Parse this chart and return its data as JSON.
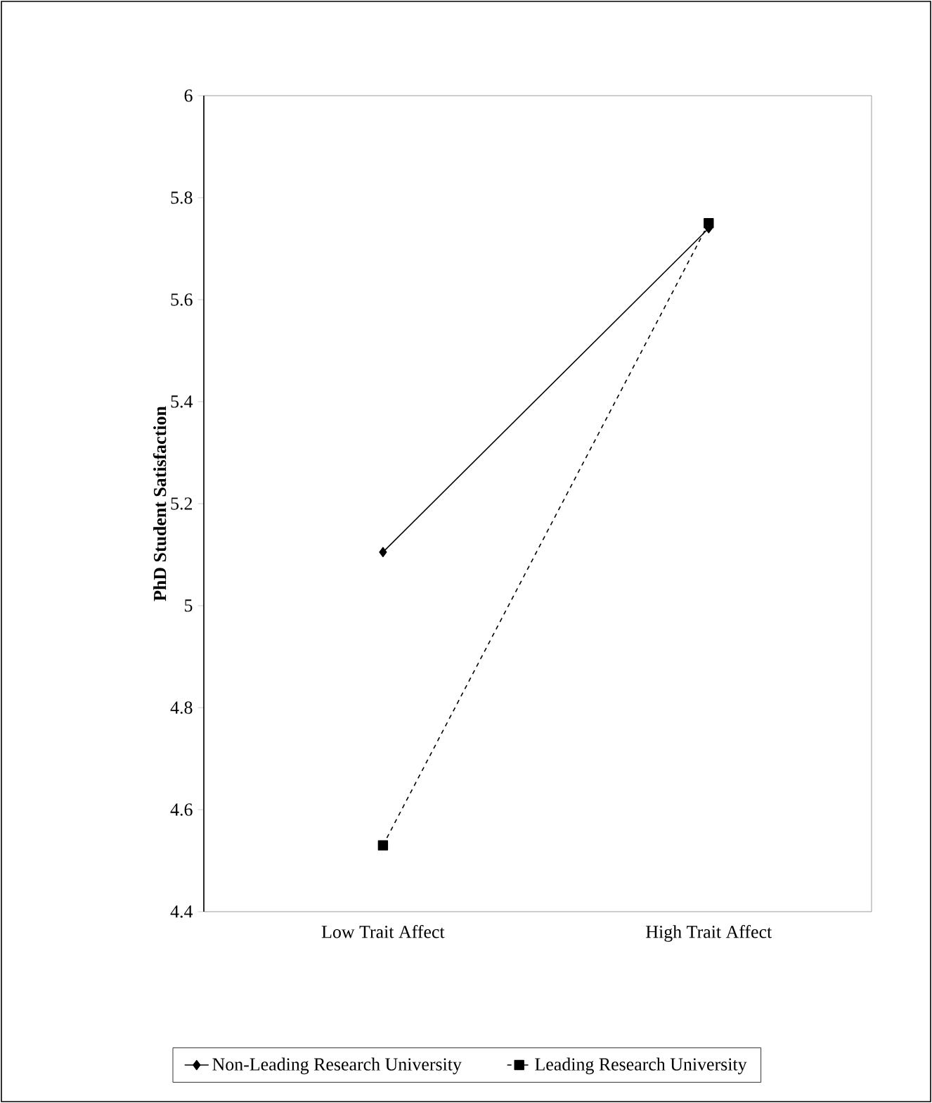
{
  "chart_data": {
    "type": "line",
    "ylabel": "PhD Student Satisfaction",
    "categories": [
      "Low Trait Affect",
      "High Trait Affect"
    ],
    "series": [
      {
        "name": "Non-Leading Research University",
        "color": "#000000",
        "values": [
          5.105,
          5.74
        ],
        "marker": "diamond",
        "line_style": "solid"
      },
      {
        "name": "Leading Research University",
        "color": "#000000",
        "values": [
          4.53,
          5.75
        ],
        "marker": "square",
        "line_style": "dashed"
      }
    ],
    "ylim": [
      4.4,
      6
    ],
    "yticks": [
      4.4,
      4.6,
      4.8,
      5,
      5.2,
      5.4,
      5.6,
      5.8,
      6
    ],
    "legend": "bottom"
  }
}
